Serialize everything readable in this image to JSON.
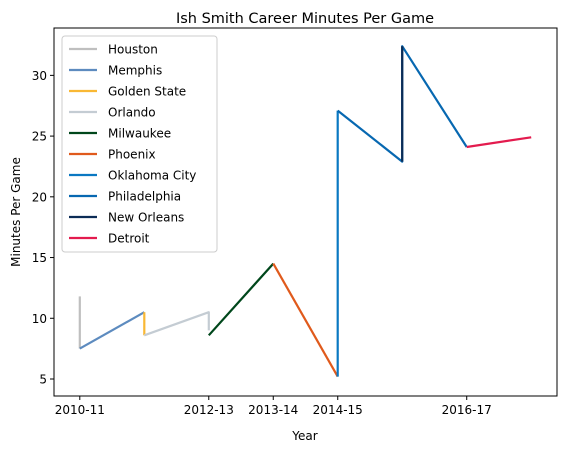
{
  "chart_data": {
    "type": "line",
    "title": "Ish Smith Career Minutes Per Game",
    "xlabel": "Year",
    "ylabel": "Minutes Per Game",
    "x_tick_labels": [
      {
        "x": 0,
        "label": "2010-11"
      },
      {
        "x": 2,
        "label": "2012-13"
      },
      {
        "x": 3,
        "label": "2013-14"
      },
      {
        "x": 4,
        "label": "2014-15"
      },
      {
        "x": 6,
        "label": "2016-17"
      }
    ],
    "xlim": [
      -0.4,
      7.4
    ],
    "ylim": [
      3.6,
      33.9
    ],
    "yticks": [
      5,
      10,
      15,
      20,
      25,
      30
    ],
    "grid": false,
    "legend_position": "upper-left",
    "series": [
      {
        "name": "Houston",
        "color": "#bfbfbf",
        "points": [
          [
            0,
            11.8
          ],
          [
            0,
            7.5
          ]
        ]
      },
      {
        "name": "Memphis",
        "color": "#5d8bbf",
        "points": [
          [
            0,
            7.5
          ],
          [
            1,
            10.5
          ]
        ]
      },
      {
        "name": "Golden State",
        "color": "#f9b834",
        "points": [
          [
            1,
            10.5
          ],
          [
            1,
            8.6
          ]
        ]
      },
      {
        "name": "Orlando",
        "color": "#c4ccd3",
        "points": [
          [
            1,
            8.6
          ],
          [
            2,
            10.5
          ],
          [
            2,
            9.0
          ]
        ]
      },
      {
        "name": "Milwaukee",
        "color": "#00471b",
        "points": [
          [
            2,
            8.6
          ],
          [
            3,
            14.5
          ]
        ]
      },
      {
        "name": "Phoenix",
        "color": "#e05a1c",
        "points": [
          [
            3,
            14.5
          ],
          [
            4,
            5.2
          ]
        ]
      },
      {
        "name": "Oklahoma City",
        "color": "#0a78c2",
        "points": [
          [
            4,
            5.2
          ],
          [
            4,
            27.1
          ]
        ]
      },
      {
        "name": "Philadelphia",
        "color": "#0768b1",
        "points": [
          [
            4,
            27.1
          ],
          [
            5,
            22.9
          ],
          [
            5,
            32.4
          ],
          [
            6,
            24.1
          ]
        ]
      },
      {
        "name": "New Orleans",
        "color": "#0c2c56",
        "points": [
          [
            5,
            22.9
          ],
          [
            5,
            32.4
          ]
        ]
      },
      {
        "name": "Detroit",
        "color": "#e31b4e",
        "points": [
          [
            6,
            24.1
          ],
          [
            7,
            24.9
          ]
        ]
      }
    ]
  }
}
